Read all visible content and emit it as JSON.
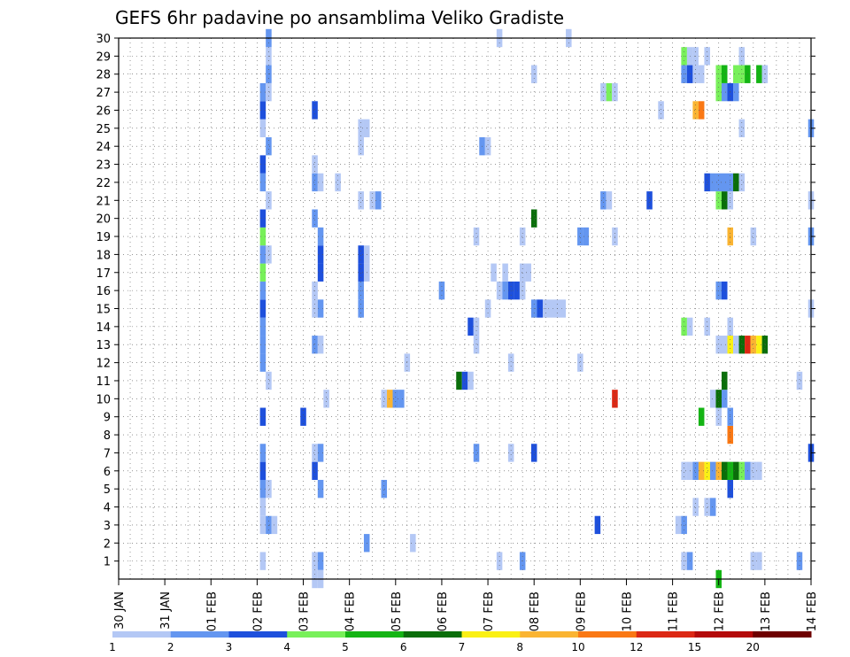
{
  "chart_data": {
    "type": "heatmap",
    "title": "GEFS 6hr padavine po ansamblima Veliko Gradiste",
    "x_tick_labels": [
      "30 JAN",
      "31 JAN",
      "01 FEB",
      "02 FEB",
      "03 FEB",
      "04 FEB",
      "05 FEB",
      "06 FEB",
      "07 FEB",
      "08 FEB",
      "09 FEB",
      "10 FEB",
      "11 FEB",
      "12 FEB",
      "13 FEB",
      "14 FEB"
    ],
    "y_tick_labels": [
      "1",
      "2",
      "3",
      "4",
      "5",
      "6",
      "7",
      "8",
      "9",
      "10",
      "11",
      "12",
      "13",
      "14",
      "15",
      "16",
      "17",
      "18",
      "19",
      "20",
      "21",
      "22",
      "23",
      "24",
      "25",
      "26",
      "27",
      "28",
      "29",
      "30"
    ],
    "x_range": [
      0,
      60
    ],
    "y_range": [
      0,
      30
    ],
    "x_step": "6hr",
    "grid": true,
    "color_bins": [
      {
        "color": "#b4c8f5"
      },
      {
        "color": "#6496f0"
      },
      {
        "color": "#1e50dc"
      },
      {
        "color": "#78f05a"
      },
      {
        "color": "#14b414"
      },
      {
        "color": "#0a6e0a"
      },
      {
        "color": "#faf014"
      },
      {
        "color": "#fab432"
      },
      {
        "color": "#fa7814"
      },
      {
        "color": "#dc2814"
      },
      {
        "color": "#b40a0a"
      },
      {
        "color": "#6e0000"
      }
    ],
    "legend_labels": [
      "1",
      "2",
      "3",
      "4",
      "5",
      "6",
      "7",
      "8",
      "10",
      "12",
      "15",
      "20"
    ],
    "cells": [
      [
        12.5,
        1,
        1
      ],
      [
        17,
        1,
        1
      ],
      [
        17.5,
        1,
        2
      ],
      [
        33,
        1,
        1
      ],
      [
        35,
        1,
        2
      ],
      [
        49,
        1,
        1
      ],
      [
        49.5,
        1,
        2
      ],
      [
        55,
        1,
        1
      ],
      [
        55.5,
        1,
        1
      ],
      [
        59,
        1,
        2
      ],
      [
        17,
        0,
        1
      ],
      [
        17.5,
        0,
        1
      ],
      [
        52,
        0,
        5
      ],
      [
        21.5,
        2,
        2
      ],
      [
        25.5,
        2,
        1
      ],
      [
        12.5,
        3,
        1
      ],
      [
        13,
        3,
        2
      ],
      [
        13.5,
        3,
        1
      ],
      [
        41.5,
        3,
        3
      ],
      [
        48.5,
        3,
        1
      ],
      [
        49,
        3,
        2
      ],
      [
        12.5,
        4,
        1
      ],
      [
        50,
        4,
        1
      ],
      [
        51,
        4,
        1
      ],
      [
        51.5,
        4,
        2
      ],
      [
        12.5,
        5,
        2
      ],
      [
        13,
        5,
        1
      ],
      [
        17.5,
        5,
        2
      ],
      [
        23,
        5,
        2
      ],
      [
        53,
        5,
        3
      ],
      [
        12.5,
        6,
        3
      ],
      [
        17,
        6,
        3
      ],
      [
        49,
        6,
        1
      ],
      [
        49.5,
        6,
        1
      ],
      [
        50,
        6,
        2
      ],
      [
        50.5,
        6,
        8
      ],
      [
        51,
        6,
        7
      ],
      [
        51.5,
        6,
        2
      ],
      [
        52,
        6,
        8
      ],
      [
        52.5,
        6,
        6
      ],
      [
        53,
        6,
        5
      ],
      [
        53.5,
        6,
        6
      ],
      [
        54,
        6,
        4
      ],
      [
        54.5,
        6,
        2
      ],
      [
        55,
        6,
        1
      ],
      [
        55.5,
        6,
        1
      ],
      [
        12.5,
        7,
        2
      ],
      [
        17,
        7,
        1
      ],
      [
        17.5,
        7,
        2
      ],
      [
        31,
        7,
        2
      ],
      [
        34,
        7,
        1
      ],
      [
        36,
        7,
        3
      ],
      [
        60,
        7,
        3
      ],
      [
        53,
        8,
        9
      ],
      [
        12.5,
        9,
        3
      ],
      [
        16,
        9,
        3
      ],
      [
        50.5,
        9,
        5
      ],
      [
        52,
        9,
        1
      ],
      [
        53,
        9,
        2
      ],
      [
        18,
        10,
        1
      ],
      [
        23,
        10,
        1
      ],
      [
        23.5,
        10,
        8
      ],
      [
        24,
        10,
        2
      ],
      [
        24.5,
        10,
        2
      ],
      [
        43,
        10,
        10
      ],
      [
        51.5,
        10,
        1
      ],
      [
        52,
        10,
        6
      ],
      [
        52.5,
        10,
        2
      ],
      [
        13,
        11,
        1
      ],
      [
        29.5,
        11,
        6
      ],
      [
        30,
        11,
        3
      ],
      [
        30.5,
        11,
        1
      ],
      [
        52.5,
        11,
        6
      ],
      [
        59,
        11,
        1
      ],
      [
        12.5,
        12,
        2
      ],
      [
        25,
        12,
        1
      ],
      [
        34,
        12,
        1
      ],
      [
        40,
        12,
        1
      ],
      [
        12.5,
        13,
        2
      ],
      [
        17,
        13,
        2
      ],
      [
        17.5,
        13,
        1
      ],
      [
        31,
        13,
        1
      ],
      [
        52,
        13,
        1
      ],
      [
        52.5,
        13,
        1
      ],
      [
        53,
        13,
        7
      ],
      [
        53.5,
        13,
        1
      ],
      [
        54,
        13,
        6
      ],
      [
        54.5,
        13,
        10
      ],
      [
        55,
        13,
        8
      ],
      [
        55.5,
        13,
        7
      ],
      [
        56,
        13,
        6
      ],
      [
        12.5,
        14,
        2
      ],
      [
        30.5,
        14,
        3
      ],
      [
        31,
        14,
        1
      ],
      [
        49,
        14,
        4
      ],
      [
        49.5,
        14,
        1
      ],
      [
        51,
        14,
        1
      ],
      [
        53,
        14,
        1
      ],
      [
        12.5,
        15,
        3
      ],
      [
        17,
        15,
        1
      ],
      [
        17.5,
        15,
        2
      ],
      [
        21,
        15,
        2
      ],
      [
        32,
        15,
        1
      ],
      [
        36,
        15,
        2
      ],
      [
        36.5,
        15,
        3
      ],
      [
        37,
        15,
        1
      ],
      [
        37.5,
        15,
        1
      ],
      [
        38,
        15,
        1
      ],
      [
        38.5,
        15,
        1
      ],
      [
        60,
        15,
        1
      ],
      [
        12.5,
        16,
        2
      ],
      [
        17,
        16,
        1
      ],
      [
        21,
        16,
        2
      ],
      [
        28,
        16,
        2
      ],
      [
        33,
        16,
        1
      ],
      [
        33.5,
        16,
        2
      ],
      [
        34,
        16,
        3
      ],
      [
        34.5,
        16,
        3
      ],
      [
        35,
        16,
        1
      ],
      [
        52,
        16,
        2
      ],
      [
        52.5,
        16,
        3
      ],
      [
        12.5,
        17,
        4
      ],
      [
        17.5,
        17,
        3
      ],
      [
        21,
        17,
        3
      ],
      [
        21.5,
        17,
        1
      ],
      [
        32.5,
        17,
        1
      ],
      [
        33.5,
        17,
        1
      ],
      [
        35,
        17,
        1
      ],
      [
        35.5,
        17,
        1
      ],
      [
        12.5,
        18,
        2
      ],
      [
        13,
        18,
        1
      ],
      [
        17.5,
        18,
        3
      ],
      [
        21,
        18,
        3
      ],
      [
        21.5,
        18,
        1
      ],
      [
        12.5,
        19,
        4
      ],
      [
        17.5,
        19,
        2
      ],
      [
        31,
        19,
        1
      ],
      [
        35,
        19,
        1
      ],
      [
        40,
        19,
        2
      ],
      [
        40.5,
        19,
        2
      ],
      [
        43,
        19,
        1
      ],
      [
        53,
        19,
        8
      ],
      [
        55,
        19,
        1
      ],
      [
        60,
        19,
        2
      ],
      [
        12.5,
        20,
        3
      ],
      [
        17,
        20,
        2
      ],
      [
        36,
        20,
        6
      ],
      [
        13,
        21,
        1
      ],
      [
        21,
        21,
        1
      ],
      [
        22,
        21,
        1
      ],
      [
        22.5,
        21,
        2
      ],
      [
        42,
        21,
        2
      ],
      [
        42.5,
        21,
        1
      ],
      [
        46,
        21,
        3
      ],
      [
        52,
        21,
        4
      ],
      [
        52.5,
        21,
        6
      ],
      [
        53,
        21,
        1
      ],
      [
        60,
        21,
        1
      ],
      [
        12.5,
        22,
        2
      ],
      [
        17,
        22,
        2
      ],
      [
        17.5,
        22,
        1
      ],
      [
        19,
        22,
        1
      ],
      [
        51,
        22,
        3
      ],
      [
        51.5,
        22,
        2
      ],
      [
        52,
        22,
        2
      ],
      [
        52.5,
        22,
        2
      ],
      [
        53,
        22,
        2
      ],
      [
        53.5,
        22,
        6
      ],
      [
        54,
        22,
        1
      ],
      [
        12.5,
        23,
        3
      ],
      [
        17,
        23,
        1
      ],
      [
        13,
        24,
        2
      ],
      [
        21,
        24,
        1
      ],
      [
        31.5,
        24,
        2
      ],
      [
        32,
        24,
        1
      ],
      [
        12.5,
        25,
        1
      ],
      [
        21,
        25,
        1
      ],
      [
        21.5,
        25,
        1
      ],
      [
        54,
        25,
        1
      ],
      [
        60,
        25,
        2
      ],
      [
        12.5,
        26,
        3
      ],
      [
        17,
        26,
        3
      ],
      [
        47,
        26,
        1
      ],
      [
        50,
        26,
        8
      ],
      [
        50.5,
        26,
        9
      ],
      [
        12.5,
        27,
        2
      ],
      [
        13,
        27,
        1
      ],
      [
        42,
        27,
        1
      ],
      [
        42.5,
        27,
        4
      ],
      [
        43,
        27,
        1
      ],
      [
        52,
        27,
        4
      ],
      [
        52.5,
        27,
        2
      ],
      [
        53,
        27,
        3
      ],
      [
        53.5,
        27,
        2
      ],
      [
        13,
        28,
        2
      ],
      [
        36,
        28,
        1
      ],
      [
        49,
        28,
        2
      ],
      [
        49.5,
        28,
        3
      ],
      [
        50,
        28,
        1
      ],
      [
        50.5,
        28,
        1
      ],
      [
        52,
        28,
        4
      ],
      [
        52.5,
        28,
        5
      ],
      [
        53.5,
        28,
        4
      ],
      [
        54,
        28,
        4
      ],
      [
        54.5,
        28,
        5
      ],
      [
        55.5,
        28,
        5
      ],
      [
        56,
        28,
        1
      ],
      [
        13,
        29,
        1
      ],
      [
        49,
        29,
        4
      ],
      [
        49.5,
        29,
        1
      ],
      [
        50,
        29,
        1
      ],
      [
        51,
        29,
        1
      ],
      [
        54,
        29,
        1
      ],
      [
        13,
        30,
        2
      ],
      [
        33,
        30,
        1
      ],
      [
        39,
        30,
        1
      ]
    ]
  }
}
